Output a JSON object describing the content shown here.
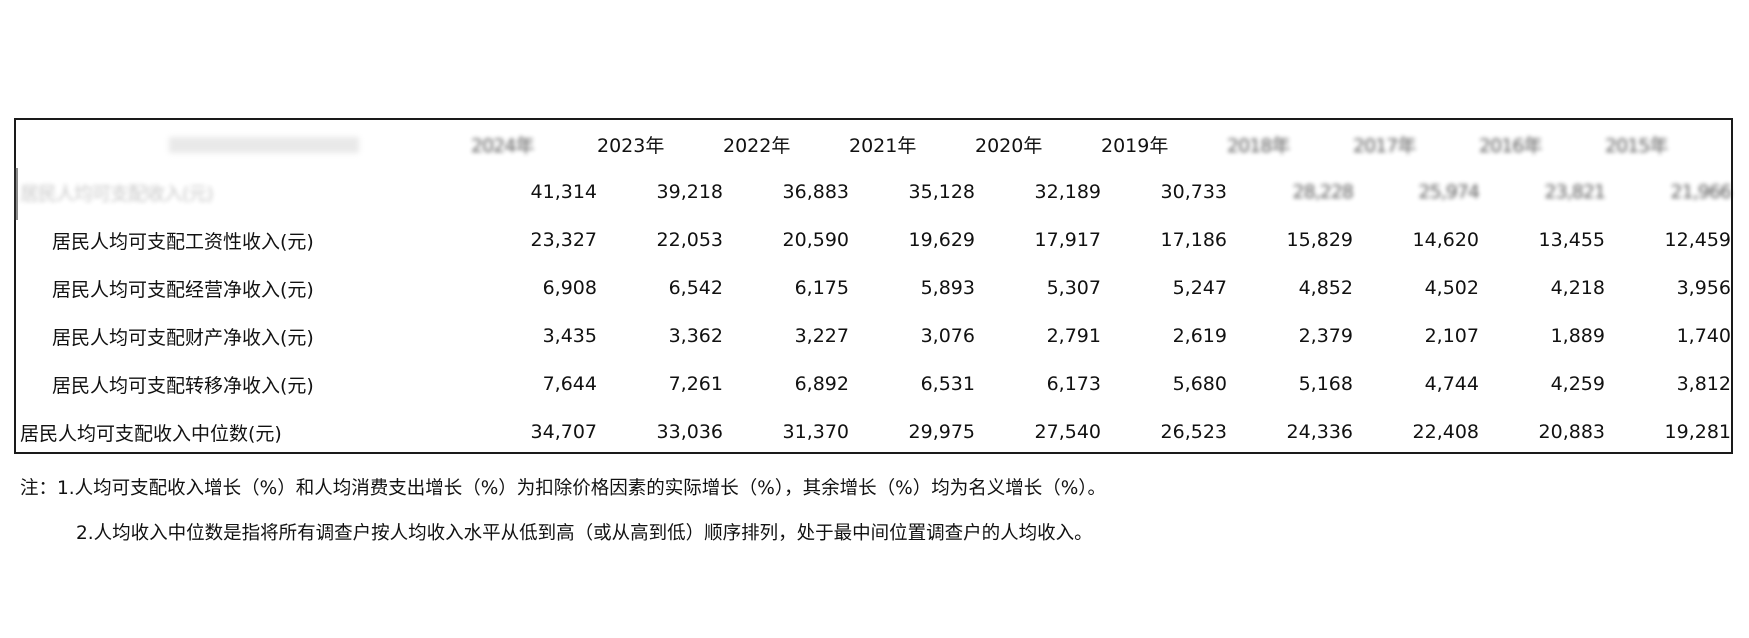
{
  "table": {
    "years": [
      "2024年",
      "2023年",
      "2022年",
      "2021年",
      "2020年",
      "2019年",
      "2018年",
      "2017年",
      "2016年",
      "2015年"
    ],
    "rows": [
      {
        "label": "居民人均可支配收入(元)",
        "values": [
          "41,314",
          "39,218",
          "36,883",
          "35,128",
          "32,189",
          "30,733",
          "28,228",
          "25,974",
          "23,821",
          "21,966"
        ]
      },
      {
        "label": "居民人均可支配工资性收入(元)",
        "values": [
          "23,327",
          "22,053",
          "20,590",
          "19,629",
          "17,917",
          "17,186",
          "15,829",
          "14,620",
          "13,455",
          "12,459"
        ]
      },
      {
        "label": "居民人均可支配经营净收入(元)",
        "values": [
          "6,908",
          "6,542",
          "6,175",
          "5,893",
          "5,307",
          "5,247",
          "4,852",
          "4,502",
          "4,218",
          "3,956"
        ]
      },
      {
        "label": "居民人均可支配财产净收入(元)",
        "values": [
          "3,435",
          "3,362",
          "3,227",
          "3,076",
          "2,791",
          "2,619",
          "2,379",
          "2,107",
          "1,889",
          "1,740"
        ]
      },
      {
        "label": "居民人均可支配转移净收入(元)",
        "values": [
          "7,644",
          "7,261",
          "6,892",
          "6,531",
          "6,173",
          "5,680",
          "5,168",
          "4,744",
          "4,259",
          "3,812"
        ]
      },
      {
        "label": "居民人均可支配收入中位数(元)",
        "values": [
          "34,707",
          "33,036",
          "31,370",
          "29,975",
          "27,540",
          "26,523",
          "24,336",
          "22,408",
          "20,883",
          "19,281"
        ]
      }
    ]
  },
  "notes": {
    "line1": "注：1.人均可支配收入增长（%）和人均消费支出增长（%）为扣除价格因素的实际增长（%），其余增长（%）均为名义增长（%）。",
    "line2": "2.人均收入中位数是指将所有调查户按人均收入水平从低到高（或从高到低）顺序排列，处于最中间位置调查户的人均收入。"
  }
}
